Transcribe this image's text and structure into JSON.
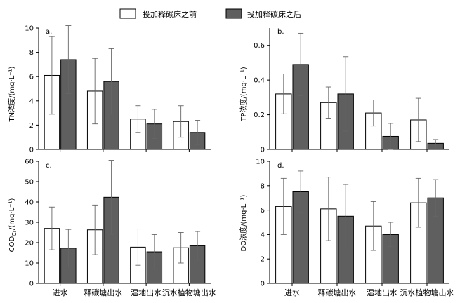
{
  "legend": [
    {
      "label": "投加释碳床之前",
      "color": "#ffffff"
    },
    {
      "label": "投加释碳床之后",
      "color": "#5f5f5f"
    }
  ],
  "categories": [
    "进水",
    "释碳塘出水",
    "湿地出水",
    "沉水植物塘出水"
  ],
  "chart_data": [
    {
      "type": "bar",
      "panel": "a.",
      "ylabel": "TN浓度/(mg·L⁻¹)",
      "ylim": [
        0,
        10
      ],
      "yticks": [
        "0",
        "2",
        "4",
        "6",
        "8",
        "10"
      ],
      "categories": [
        "进水",
        "释碳塘出水",
        "湿地出水",
        "沉水植物塘出水"
      ],
      "show_xticklabels": false,
      "series": [
        {
          "name": "投加释碳床之前",
          "values": [
            6.1,
            4.8,
            2.5,
            2.3
          ],
          "errors": [
            3.2,
            2.7,
            1.1,
            1.3
          ]
        },
        {
          "name": "投加释碳床之后",
          "values": [
            7.4,
            5.6,
            2.1,
            1.4
          ],
          "errors": [
            2.8,
            2.7,
            1.2,
            1.0
          ]
        }
      ]
    },
    {
      "type": "bar",
      "panel": "b.",
      "ylabel": "TP浓度/(mg·L⁻¹)",
      "ylim": [
        0,
        0.7
      ],
      "yticks": [
        "0",
        "0.2",
        "0.4",
        "0.6"
      ],
      "categories": [
        "进水",
        "释碳塘出水",
        "湿地出水",
        "沉水植物塘出水"
      ],
      "show_xticklabels": false,
      "series": [
        {
          "name": "投加释碳床之前",
          "values": [
            0.32,
            0.27,
            0.21,
            0.17
          ],
          "errors": [
            0.115,
            0.09,
            0.075,
            0.125
          ]
        },
        {
          "name": "投加释碳床之后",
          "values": [
            0.49,
            0.32,
            0.075,
            0.035
          ],
          "errors": [
            0.18,
            0.215,
            0.075,
            0.022
          ]
        }
      ]
    },
    {
      "type": "bar",
      "panel": "c.",
      "ylabel": "COD_Cr/(mg·L⁻¹)",
      "ylim": [
        0,
        60
      ],
      "yticks": [
        "0",
        "10",
        "20",
        "30",
        "40",
        "50",
        "60"
      ],
      "categories": [
        "进水",
        "释碳塘出水",
        "湿地出水",
        "沉水植物塘出水"
      ],
      "show_xticklabels": true,
      "series": [
        {
          "name": "投加释碳床之前",
          "values": [
            27,
            26.3,
            17.8,
            17.5
          ],
          "errors": [
            10.5,
            12.2,
            8.9,
            7.5
          ]
        },
        {
          "name": "投加释碳床之后",
          "values": [
            17.3,
            42.3,
            15.5,
            18.5
          ],
          "errors": [
            9.2,
            18.2,
            8.5,
            7
          ]
        }
      ]
    },
    {
      "type": "bar",
      "panel": "d.",
      "ylabel": "DO浓度/(mg·L⁻¹)",
      "ylim": [
        0,
        10
      ],
      "yticks": [
        "0",
        "2",
        "4",
        "6",
        "8",
        "10"
      ],
      "categories": [
        "进水",
        "释碳塘出水",
        "湿地出水",
        "沉水植物塘出水"
      ],
      "show_xticklabels": true,
      "series": [
        {
          "name": "投加释碳床之前",
          "values": [
            6.3,
            6.1,
            4.7,
            6.6
          ],
          "errors": [
            2.3,
            2.6,
            2.0,
            2.0
          ]
        },
        {
          "name": "投加释碳床之后",
          "values": [
            7.5,
            5.5,
            4.0,
            7.0
          ],
          "errors": [
            1.7,
            2.6,
            1.0,
            1.5
          ]
        }
      ]
    }
  ]
}
